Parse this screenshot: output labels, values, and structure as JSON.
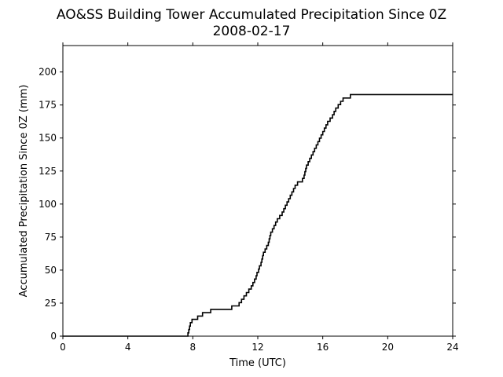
{
  "chart_data": {
    "type": "line",
    "title": "AO&SS Building Tower Accumulated Precipitation Since 0Z",
    "subtitle": "2008-02-17",
    "xlabel": "Time (UTC)",
    "ylabel": "Accumulated Precipitation Since 0Z (mm)",
    "xlim": [
      0,
      24
    ],
    "ylim": [
      0,
      220
    ],
    "xticks": [
      "0",
      "4",
      "8",
      "12",
      "16",
      "20",
      "24"
    ],
    "yticks": [
      "0",
      "25",
      "50",
      "75",
      "100",
      "125",
      "150",
      "175",
      "200"
    ],
    "grid": false,
    "legend": "none",
    "line_color": "#000000",
    "series": [
      {
        "x": [
          0,
          7.6,
          7.7,
          7.75,
          7.8,
          7.85,
          7.95,
          8.1,
          8.3,
          8.6,
          8.75,
          8.9,
          9.1,
          9.4,
          10.4,
          10.6,
          10.85,
          11.0,
          11.15,
          11.3,
          11.45,
          11.6,
          11.7,
          11.8,
          11.9,
          11.95,
          12.05,
          12.1,
          12.2,
          12.25,
          12.3,
          12.35,
          12.45,
          12.55,
          12.65,
          12.7,
          12.75,
          12.8,
          12.9,
          13.0,
          13.1,
          13.2,
          13.35,
          13.5,
          13.6,
          13.7,
          13.8,
          13.9,
          14.0,
          14.1,
          14.2,
          14.3,
          14.45,
          14.6,
          14.75,
          14.85,
          14.9,
          14.95,
          15.0,
          15.1,
          15.2,
          15.3,
          15.4,
          15.5,
          15.6,
          15.7,
          15.8,
          15.9,
          16.0,
          16.1,
          16.2,
          16.3,
          16.45,
          16.6,
          16.7,
          16.8,
          16.95,
          17.1,
          17.25,
          17.4,
          17.55,
          17.7,
          17.8,
          17.9,
          24.0
        ],
        "y": [
          0,
          0,
          2.5,
          5,
          7.6,
          10.2,
          12.7,
          12.7,
          15.2,
          17.8,
          17.8,
          17.8,
          20.3,
          20.3,
          22.9,
          22.9,
          25.4,
          27.9,
          30.5,
          33.0,
          35.6,
          38.1,
          40.6,
          43.2,
          45.7,
          48.3,
          50.8,
          53.3,
          55.9,
          58.4,
          61.0,
          63.5,
          66.0,
          68.6,
          71.1,
          73.7,
          76.2,
          78.7,
          81.3,
          83.8,
          86.4,
          88.9,
          91.4,
          94.0,
          96.5,
          99.1,
          101.6,
          104.1,
          106.7,
          109.2,
          111.8,
          114.3,
          116.8,
          116.8,
          119.4,
          121.9,
          124.5,
          127.0,
          129.5,
          132.1,
          134.6,
          137.2,
          139.7,
          142.2,
          144.8,
          147.3,
          149.9,
          152.4,
          154.9,
          157.5,
          160.0,
          162.6,
          165.1,
          167.6,
          170.2,
          172.7,
          175.3,
          177.8,
          180.3,
          180.3,
          180.3,
          182.9,
          182.9,
          182.9,
          182.9
        ]
      }
    ]
  }
}
